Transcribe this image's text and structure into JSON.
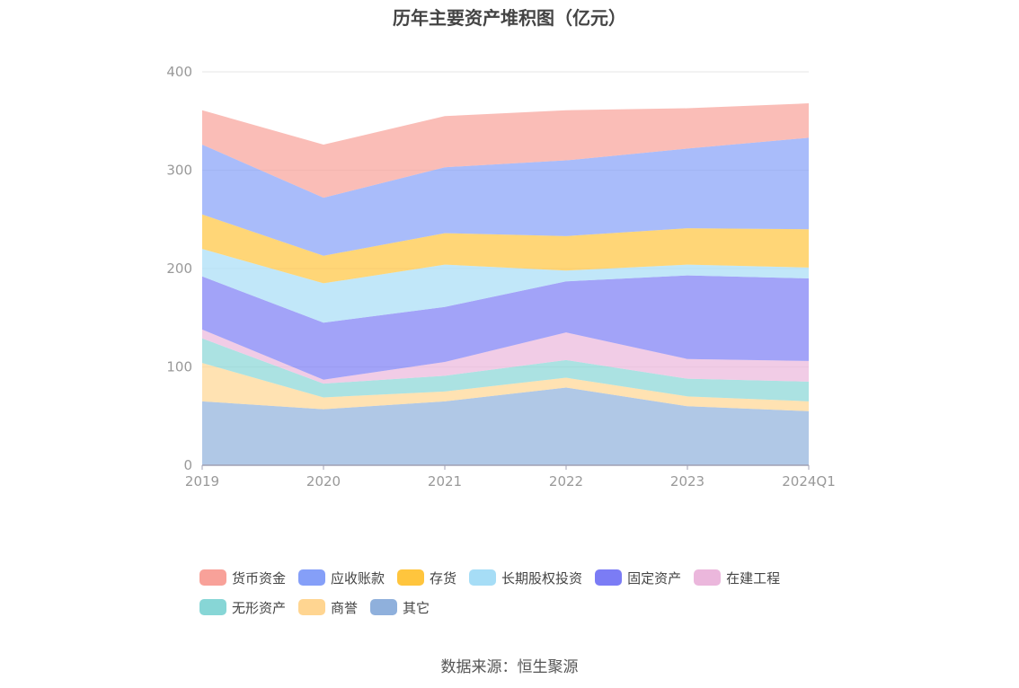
{
  "source": "数据来源：恒生聚源",
  "chart_data": {
    "type": "area",
    "stacked": true,
    "title": "历年主要资产堆积图（亿元）",
    "categories": [
      "2019",
      "2020",
      "2021",
      "2022",
      "2023",
      "2024Q1"
    ],
    "ylim": [
      0,
      400
    ],
    "yticks": [
      0,
      100,
      200,
      300,
      400
    ],
    "grid": true,
    "legend_position": "bottom",
    "series": [
      {
        "name": "其它",
        "color": "#8fb0dc",
        "values": [
          65,
          57,
          65,
          79,
          60,
          55
        ]
      },
      {
        "name": "商誉",
        "color": "#ffd591",
        "values": [
          39,
          12,
          10,
          10,
          10,
          10
        ]
      },
      {
        "name": "无形资产",
        "color": "#87d6d6",
        "values": [
          25,
          14,
          16,
          18,
          18,
          20
        ]
      },
      {
        "name": "在建工程",
        "color": "#ebb7dc",
        "values": [
          9,
          4,
          14,
          28,
          20,
          21
        ]
      },
      {
        "name": "固定资产",
        "color": "#7b7cf5",
        "values": [
          54,
          58,
          56,
          52,
          85,
          84
        ]
      },
      {
        "name": "长期股权投资",
        "color": "#a6ddf6",
        "values": [
          28,
          40,
          43,
          11,
          11,
          11
        ]
      },
      {
        "name": "存货",
        "color": "#ffc53d",
        "values": [
          35,
          28,
          32,
          35,
          37,
          39
        ]
      },
      {
        "name": "应收账款",
        "color": "#859ff8",
        "values": [
          71,
          59,
          67,
          77,
          81,
          93
        ]
      },
      {
        "name": "货币资金",
        "color": "#f8a199",
        "values": [
          35,
          54,
          52,
          51,
          41,
          35
        ]
      }
    ]
  },
  "legend_rows": [
    [
      {
        "label": "货币资金",
        "color": "#f8a199"
      },
      {
        "label": "应收账款",
        "color": "#859ff8"
      },
      {
        "label": "存货",
        "color": "#ffc53d"
      },
      {
        "label": "长期股权投资",
        "color": "#a6ddf6"
      },
      {
        "label": "固定资产",
        "color": "#7b7cf5"
      },
      {
        "label": "在建工程",
        "color": "#ebb7dc"
      }
    ],
    [
      {
        "label": "无形资产",
        "color": "#87d6d6"
      },
      {
        "label": "商誉",
        "color": "#ffd591"
      },
      {
        "label": "其它",
        "color": "#8fb0dc"
      }
    ]
  ]
}
